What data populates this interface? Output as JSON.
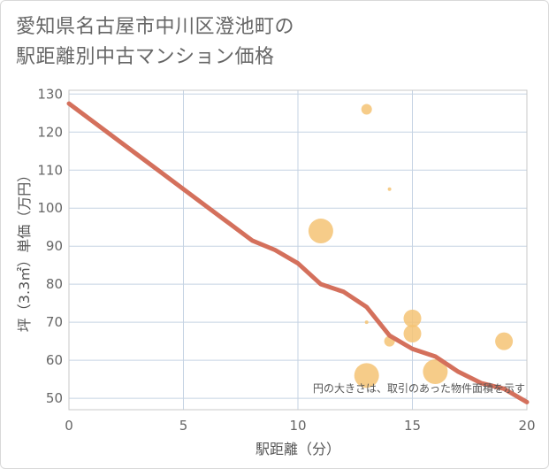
{
  "title": {
    "line1": "愛知県名古屋市中川区澄池町の",
    "line2": "駅距離別中古マンション価格"
  },
  "colors": {
    "bubble": "#f5c374",
    "trend": "#d4705c",
    "grid": "#c5d3e3",
    "plot_border": "#c9c9c9"
  },
  "chart_data": {
    "type": "scatter",
    "xlabel": "駅距離（分）",
    "ylabel": "坪（3.3㎡）単価（万円）",
    "xlim": [
      0,
      20
    ],
    "ylim": [
      47,
      131
    ],
    "xticks": [
      0,
      5,
      10,
      15,
      20
    ],
    "yticks": [
      50,
      60,
      70,
      80,
      90,
      100,
      110,
      120,
      130
    ],
    "note": "円の大きさは、取引のあった物件面積を示す",
    "bubbles": [
      {
        "x": 13,
        "y": 126,
        "size": 6
      },
      {
        "x": 14,
        "y": 105,
        "size": 2
      },
      {
        "x": 11,
        "y": 94,
        "size": 14
      },
      {
        "x": 15,
        "y": 71,
        "size": 10
      },
      {
        "x": 13,
        "y": 70,
        "size": 2
      },
      {
        "x": 15,
        "y": 67,
        "size": 10
      },
      {
        "x": 14,
        "y": 65,
        "size": 6
      },
      {
        "x": 19,
        "y": 65,
        "size": 10
      },
      {
        "x": 13,
        "y": 56,
        "size": 14
      },
      {
        "x": 16,
        "y": 57,
        "size": 14
      }
    ],
    "trend_line": {
      "x": [
        0,
        1,
        2,
        3,
        4,
        5,
        6,
        7,
        8,
        9,
        10,
        11,
        12,
        13,
        14,
        15,
        16,
        17,
        18,
        19,
        20
      ],
      "y": [
        127.5,
        123,
        118.5,
        114,
        109.5,
        105,
        100.5,
        96,
        91.5,
        89,
        85.5,
        80,
        78,
        74,
        66.5,
        63,
        61,
        57,
        54,
        52.5,
        49
      ]
    }
  }
}
